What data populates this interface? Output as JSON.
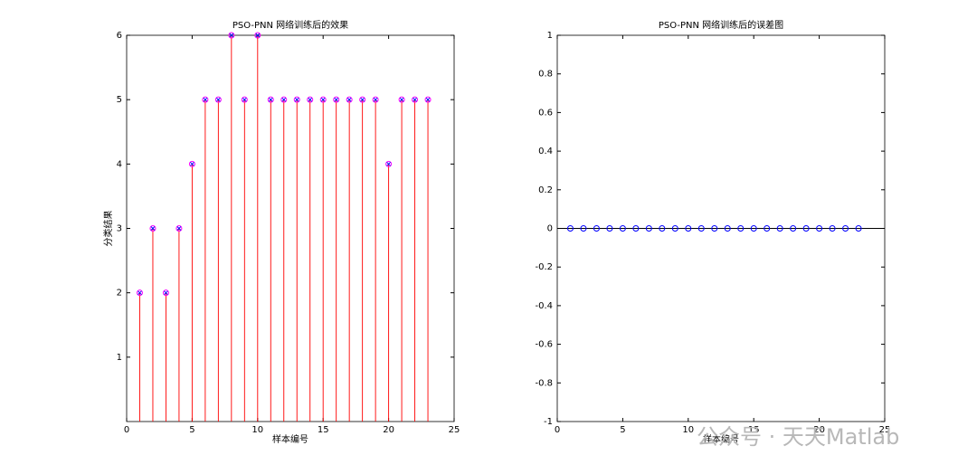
{
  "chart_data": [
    {
      "type": "stem",
      "title": "PSO-PNN 网络训练后的效果",
      "xlabel": "样本编号",
      "ylabel": "分类结果",
      "x": [
        1,
        2,
        3,
        4,
        5,
        6,
        7,
        8,
        9,
        10,
        11,
        12,
        13,
        14,
        15,
        16,
        17,
        18,
        19,
        20,
        21,
        22,
        23
      ],
      "series": [
        {
          "color": "#ff0000",
          "marker": "o",
          "marker_color": "#ff00ff",
          "stem": true,
          "values": [
            2,
            3,
            2,
            3,
            4,
            5,
            5,
            6,
            5,
            6,
            5,
            5,
            5,
            5,
            5,
            5,
            5,
            5,
            5,
            4,
            5,
            5,
            5
          ]
        },
        {
          "color": "#0000ff",
          "marker": "x",
          "stem": false,
          "values": [
            2,
            3,
            2,
            3,
            4,
            5,
            5,
            6,
            5,
            6,
            5,
            5,
            5,
            5,
            5,
            5,
            5,
            5,
            5,
            4,
            5,
            5,
            5
          ]
        }
      ],
      "xlim": [
        0,
        25
      ],
      "xticks": [
        0,
        5,
        10,
        15,
        20,
        25
      ],
      "ylim": [
        0,
        6
      ],
      "yticks": [
        1,
        2,
        3,
        4,
        5,
        6
      ],
      "baseline": false
    },
    {
      "type": "stem",
      "title": "PSO-PNN 网络训练后的误差图",
      "xlabel": "样本编号",
      "x": [
        1,
        2,
        3,
        4,
        5,
        6,
        7,
        8,
        9,
        10,
        11,
        12,
        13,
        14,
        15,
        16,
        17,
        18,
        19,
        20,
        21,
        22,
        23
      ],
      "series": [
        {
          "color": "#0000ff",
          "marker": "o",
          "marker_color": "#0000ff",
          "stem": true,
          "values": [
            0,
            0,
            0,
            0,
            0,
            0,
            0,
            0,
            0,
            0,
            0,
            0,
            0,
            0,
            0,
            0,
            0,
            0,
            0,
            0,
            0,
            0,
            0
          ]
        }
      ],
      "xlim": [
        0,
        25
      ],
      "xticks": [
        0,
        5,
        10,
        15,
        20,
        25
      ],
      "ylim": [
        -1,
        1
      ],
      "yticks": [
        -1,
        -0.8,
        -0.6,
        -0.4,
        -0.2,
        0,
        0.2,
        0.4,
        0.6,
        0.8,
        1
      ],
      "baseline": true
    }
  ],
  "watermark": "公众号 · 天天Matlab"
}
